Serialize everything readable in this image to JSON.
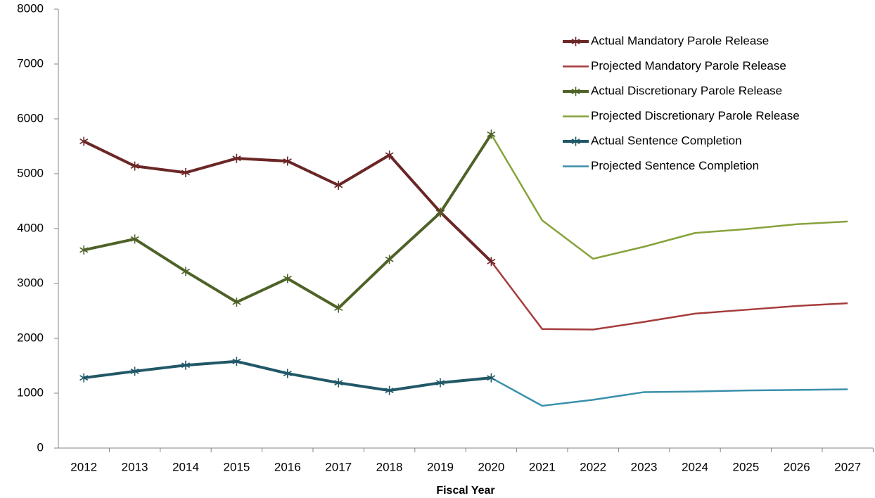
{
  "chart_data": {
    "type": "line",
    "x_label": "Fiscal Year",
    "categories": [
      "2012",
      "2013",
      "2014",
      "2015",
      "2016",
      "2017",
      "2018",
      "2019",
      "2020",
      "2021",
      "2022",
      "2023",
      "2024",
      "2025",
      "2026",
      "2027"
    ],
    "ylim": [
      0,
      8000
    ],
    "yticks": [
      0,
      1000,
      2000,
      3000,
      4000,
      5000,
      6000,
      7000,
      8000
    ],
    "grid": false,
    "legend": "top-right",
    "series": [
      {
        "name": "Actual Mandatory Parole Release",
        "color": "#6b2626",
        "marker": "asterisk",
        "line_width": 4,
        "values": [
          5590,
          5140,
          5020,
          5280,
          5230,
          4790,
          5340,
          4300,
          3400,
          null,
          null,
          null,
          null,
          null,
          null,
          null
        ]
      },
      {
        "name": "Projected Mandatory Parole Release",
        "color": "#a63c3c",
        "line_width": 2.5,
        "values": [
          null,
          null,
          null,
          null,
          null,
          null,
          null,
          null,
          3400,
          2170,
          2160,
          2300,
          2450,
          2520,
          2590,
          2640
        ]
      },
      {
        "name": "Actual Discretionary Parole Release",
        "color": "#4f6228",
        "marker": "asterisk",
        "line_width": 4,
        "values": [
          3610,
          3810,
          3220,
          2660,
          3090,
          2550,
          3440,
          4290,
          5720,
          null,
          null,
          null,
          null,
          null,
          null,
          null
        ]
      },
      {
        "name": "Projected Discretionary Parole Release",
        "color": "#86a33c",
        "line_width": 2.5,
        "values": [
          null,
          null,
          null,
          null,
          null,
          null,
          null,
          null,
          5720,
          4150,
          3450,
          3670,
          3920,
          3990,
          4080,
          4130
        ]
      },
      {
        "name": "Actual Sentence Completion",
        "color": "#215868",
        "marker": "asterisk",
        "line_width": 4,
        "values": [
          1280,
          1400,
          1510,
          1580,
          1360,
          1190,
          1050,
          1190,
          1280,
          null,
          null,
          null,
          null,
          null,
          null,
          null
        ]
      },
      {
        "name": "Projected Sentence Completion",
        "color": "#3a8fab",
        "line_width": 2.5,
        "values": [
          null,
          null,
          null,
          null,
          null,
          null,
          null,
          null,
          1280,
          770,
          880,
          1020,
          1030,
          1050,
          1060,
          1070
        ]
      }
    ]
  }
}
